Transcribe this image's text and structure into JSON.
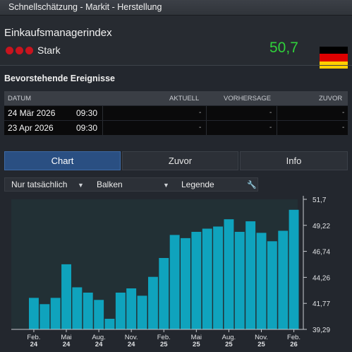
{
  "window": {
    "title": "Schnellschätzung - Markit - Herstellung"
  },
  "indicator": {
    "name": "Einkaufsmanagerindex",
    "impact_label": "Stark",
    "impact_color": "#c8141e",
    "value": "50,7",
    "value_color": "#2fd03a",
    "country_flag": "germany-flag",
    "flag_colors": [
      "#000000",
      "#dd0000",
      "#ffce00"
    ]
  },
  "events": {
    "title": "Bevorstehende Ereignisse",
    "columns": [
      "DATUM",
      "AKTUELL",
      "VORHERSAGE",
      "ZUVOR"
    ],
    "rows": [
      {
        "date": "24 Mär 2026",
        "time": "09:30",
        "actual": "-",
        "forecast": "-",
        "previous": "-"
      },
      {
        "date": "23 Apr 2026",
        "time": "09:30",
        "actual": "-",
        "forecast": "-",
        "previous": "-"
      }
    ]
  },
  "tabs": [
    {
      "label": "Chart",
      "active": true
    },
    {
      "label": "Zuvor",
      "active": false
    },
    {
      "label": "Info",
      "active": false
    }
  ],
  "toolbar": {
    "filter_label": "Nur tatsächlich",
    "type_label": "Balken",
    "legend_label": "Legende",
    "caret_glyph": "▼",
    "wrench_glyph": "🔧"
  },
  "chart_data": {
    "type": "bar",
    "bar_color": "#0fa3bd",
    "plot_background": "#223035",
    "grid": false,
    "ylim": [
      39.29,
      51.7
    ],
    "y_ticks": [
      "51,7",
      "49,22",
      "46,74",
      "44,26",
      "41,77",
      "39,29"
    ],
    "x_tick_labels": [
      [
        "Feb.",
        "24"
      ],
      [
        "Mai",
        "24"
      ],
      [
        "Aug.",
        "24"
      ],
      [
        "Nov.",
        "24"
      ],
      [
        "Feb.",
        "25"
      ],
      [
        "Mai",
        "25"
      ],
      [
        "Aug.",
        "25"
      ],
      [
        "Nov.",
        "25"
      ],
      [
        "Feb.",
        "26"
      ]
    ],
    "values": [
      42.3,
      41.7,
      42.3,
      45.5,
      43.3,
      42.8,
      42.1,
      40.3,
      42.8,
      43.2,
      42.5,
      44.3,
      46.1,
      48.3,
      48.0,
      48.6,
      48.9,
      49.1,
      49.8,
      48.6,
      49.6,
      48.5,
      47.7,
      48.7,
      50.7
    ]
  }
}
